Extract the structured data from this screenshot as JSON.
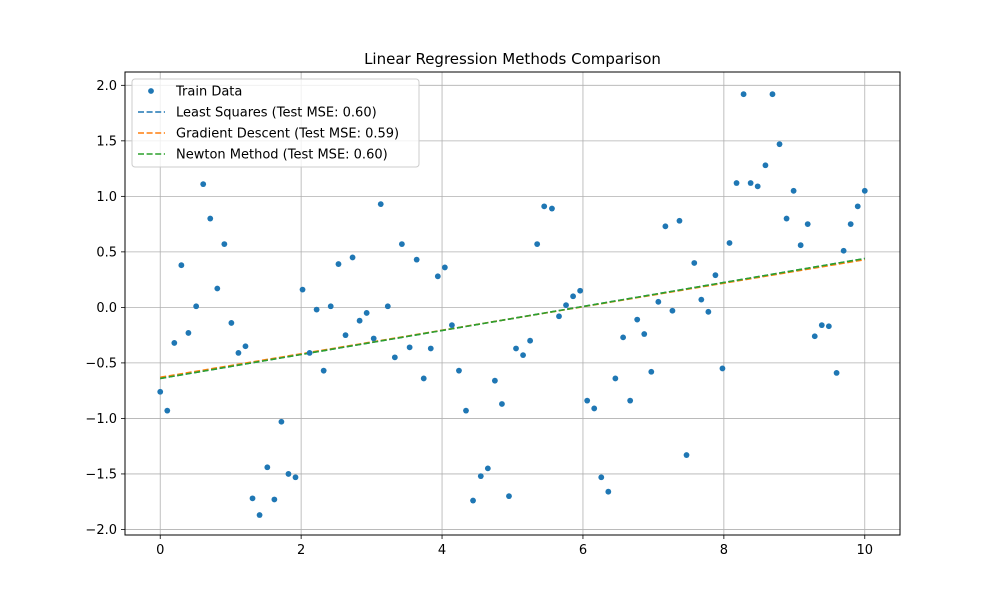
{
  "chart_data": {
    "type": "scatter",
    "title": "Linear Regression Methods Comparison",
    "xlabel": "",
    "ylabel": "",
    "xlim": [
      -0.5,
      10.5
    ],
    "ylim": [
      -2.05,
      2.12
    ],
    "xticks": [
      0,
      2,
      4,
      6,
      8,
      10
    ],
    "xtick_labels": [
      "0",
      "2",
      "4",
      "6",
      "8",
      "10"
    ],
    "yticks": [
      -2.0,
      -1.5,
      -1.0,
      -0.5,
      0.0,
      0.5,
      1.0,
      1.5,
      2.0
    ],
    "ytick_labels": [
      "−2.0",
      "−1.5",
      "−1.0",
      "−0.5",
      "0.0",
      "0.5",
      "1.0",
      "1.5",
      "2.0"
    ],
    "grid": true,
    "legend_position": "top-left",
    "series": [
      {
        "name": "Train Data",
        "kind": "scatter",
        "color": "#1f77b4",
        "points": [
          [
            0.0,
            -0.76
          ],
          [
            0.1,
            -0.93
          ],
          [
            0.2,
            -0.32
          ],
          [
            0.3,
            0.38
          ],
          [
            0.4,
            -0.23
          ],
          [
            0.51,
            0.01
          ],
          [
            0.61,
            1.11
          ],
          [
            0.71,
            0.8
          ],
          [
            0.81,
            0.17
          ],
          [
            0.91,
            0.57
          ],
          [
            1.01,
            -0.14
          ],
          [
            1.11,
            -0.41
          ],
          [
            1.21,
            -0.35
          ],
          [
            1.31,
            -1.72
          ],
          [
            1.41,
            -1.87
          ],
          [
            1.52,
            -1.44
          ],
          [
            1.62,
            -1.73
          ],
          [
            1.72,
            -1.03
          ],
          [
            1.82,
            -1.5
          ],
          [
            1.92,
            -1.53
          ],
          [
            2.02,
            0.16
          ],
          [
            2.12,
            -0.41
          ],
          [
            2.22,
            -0.02
          ],
          [
            2.32,
            -0.57
          ],
          [
            2.42,
            0.01
          ],
          [
            2.53,
            0.39
          ],
          [
            2.63,
            -0.25
          ],
          [
            2.73,
            0.45
          ],
          [
            2.83,
            -0.12
          ],
          [
            2.93,
            -0.05
          ],
          [
            3.03,
            -0.28
          ],
          [
            3.13,
            0.93
          ],
          [
            3.23,
            0.01
          ],
          [
            3.33,
            -0.45
          ],
          [
            3.43,
            0.57
          ],
          [
            3.54,
            -0.36
          ],
          [
            3.64,
            0.43
          ],
          [
            3.74,
            -0.64
          ],
          [
            3.84,
            -0.37
          ],
          [
            3.94,
            0.28
          ],
          [
            4.04,
            0.36
          ],
          [
            4.14,
            -0.16
          ],
          [
            4.24,
            -0.57
          ],
          [
            4.34,
            -0.93
          ],
          [
            4.44,
            -1.74
          ],
          [
            4.55,
            -1.52
          ],
          [
            4.65,
            -1.45
          ],
          [
            4.75,
            -0.66
          ],
          [
            4.85,
            -0.87
          ],
          [
            4.95,
            -1.7
          ],
          [
            5.05,
            -0.37
          ],
          [
            5.15,
            -0.43
          ],
          [
            5.25,
            -0.3
          ],
          [
            5.35,
            0.57
          ],
          [
            5.45,
            0.91
          ],
          [
            5.56,
            0.89
          ],
          [
            5.66,
            -0.08
          ],
          [
            5.76,
            0.02
          ],
          [
            5.86,
            0.1
          ],
          [
            5.96,
            0.15
          ],
          [
            6.06,
            -0.84
          ],
          [
            6.16,
            -0.91
          ],
          [
            6.26,
            -1.53
          ],
          [
            6.36,
            -1.66
          ],
          [
            6.46,
            -0.64
          ],
          [
            6.57,
            -0.27
          ],
          [
            6.67,
            -0.84
          ],
          [
            6.77,
            -0.11
          ],
          [
            6.87,
            -0.24
          ],
          [
            6.97,
            -0.58
          ],
          [
            7.07,
            0.05
          ],
          [
            7.17,
            0.73
          ],
          [
            7.27,
            -0.03
          ],
          [
            7.37,
            0.78
          ],
          [
            7.47,
            -1.33
          ],
          [
            7.58,
            0.4
          ],
          [
            7.68,
            0.07
          ],
          [
            7.78,
            -0.04
          ],
          [
            7.88,
            0.29
          ],
          [
            7.98,
            -0.55
          ],
          [
            8.08,
            0.58
          ],
          [
            8.18,
            1.12
          ],
          [
            8.28,
            1.92
          ],
          [
            8.38,
            1.12
          ],
          [
            8.48,
            1.09
          ],
          [
            8.59,
            1.28
          ],
          [
            8.69,
            1.92
          ],
          [
            8.79,
            1.47
          ],
          [
            8.89,
            0.8
          ],
          [
            8.99,
            1.05
          ],
          [
            9.09,
            0.56
          ],
          [
            9.19,
            0.75
          ],
          [
            9.29,
            -0.26
          ],
          [
            9.39,
            -0.16
          ],
          [
            9.49,
            -0.17
          ],
          [
            9.6,
            -0.59
          ],
          [
            9.7,
            0.51
          ],
          [
            9.8,
            0.75
          ],
          [
            9.9,
            0.91
          ],
          [
            10.0,
            1.05
          ]
        ]
      },
      {
        "name": "Least Squares (Test MSE: 0.60)",
        "kind": "line",
        "color": "#1f77b4",
        "x": [
          0,
          10
        ],
        "y": [
          -0.64,
          0.44
        ]
      },
      {
        "name": "Gradient Descent (Test MSE: 0.59)",
        "kind": "line",
        "color": "#ff7f0e",
        "x": [
          0,
          10
        ],
        "y": [
          -0.63,
          0.43
        ]
      },
      {
        "name": "Newton Method (Test MSE: 0.60)",
        "kind": "line",
        "color": "#2ca02c",
        "x": [
          0,
          10
        ],
        "y": [
          -0.64,
          0.44
        ]
      }
    ]
  }
}
